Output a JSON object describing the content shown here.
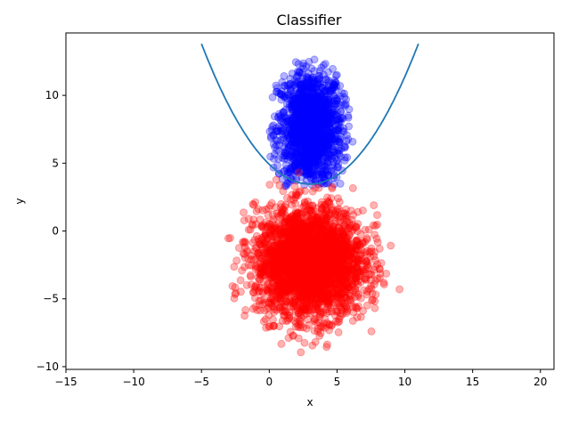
{
  "chart_data": {
    "type": "scatter",
    "title": "Classifier",
    "xlabel": "x",
    "ylabel": "y",
    "xlim": [
      -15,
      21
    ],
    "ylim": [
      -10.2,
      14.6
    ],
    "xticks": [
      "−15",
      "−10",
      "−5",
      "0",
      "5",
      "10",
      "15",
      "20"
    ],
    "xtick_values": [
      -15,
      -10,
      -5,
      0,
      5,
      10,
      15,
      20
    ],
    "yticks": [
      "−10",
      "−5",
      "0",
      "5",
      "10"
    ],
    "ytick_values": [
      -10,
      -5,
      0,
      5,
      10
    ],
    "grid": false,
    "series": [
      {
        "kind": "scatter-cloud",
        "color": "#0000ff",
        "alpha": 0.3,
        "points_shown": "dense blob",
        "center": [
          3,
          7.5
        ],
        "x_range": [
          0,
          6.5
        ],
        "y_range": [
          3.3,
          12.8
        ]
      },
      {
        "kind": "scatter-cloud",
        "color": "#ff0000",
        "alpha": 0.3,
        "points_shown": "dense blob",
        "center": [
          3,
          -2.3
        ],
        "x_range": [
          -3.5,
          10.5
        ],
        "y_range": [
          -9,
          4.8
        ]
      },
      {
        "kind": "line",
        "color": "#1f77b4",
        "equation": "y = 0.1616*(x-3)^2 + 3.46",
        "x_range": [
          -5,
          11
        ]
      }
    ]
  }
}
